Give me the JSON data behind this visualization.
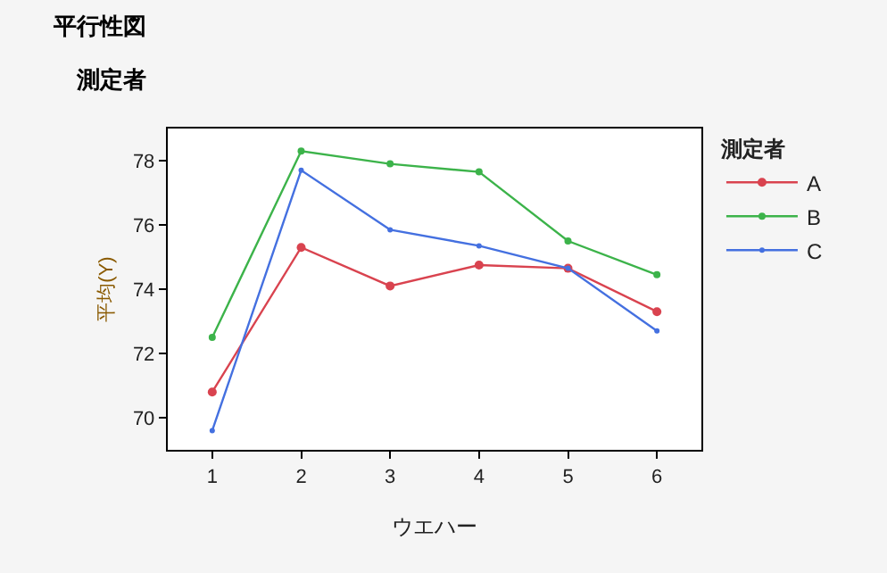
{
  "chart_data": {
    "type": "line",
    "title": "平行性図",
    "subtitle": "測定者",
    "xlabel": "ウエハー",
    "ylabel": "平均(Y)",
    "legend_title": "測定者",
    "x": [
      1,
      2,
      3,
      4,
      5,
      6
    ],
    "series": [
      {
        "name": "A",
        "color": "#d9434f",
        "values": [
          70.8,
          75.3,
          74.1,
          74.75,
          74.65,
          73.3
        ]
      },
      {
        "name": "B",
        "color": "#3cb34a",
        "values": [
          72.5,
          78.3,
          77.9,
          77.65,
          75.5,
          74.45
        ]
      },
      {
        "name": "C",
        "color": "#4470e0",
        "values": [
          69.6,
          77.7,
          75.85,
          75.35,
          74.65,
          72.7
        ]
      }
    ],
    "xlim": [
      0.5,
      6.5
    ],
    "xticks": [
      1,
      2,
      3,
      4,
      5,
      6
    ],
    "ylim": [
      69,
      79
    ],
    "yticks": [
      70,
      72,
      74,
      76,
      78
    ],
    "legend": "right",
    "marker": "circle",
    "line_style": "solid"
  }
}
